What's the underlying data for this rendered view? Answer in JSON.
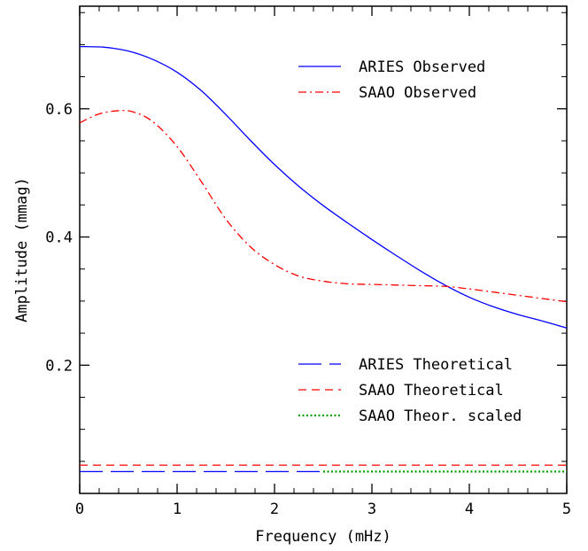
{
  "chart_data": {
    "type": "line",
    "title": "",
    "xlabel": "Frequency (mHz)",
    "ylabel": "Amplitude (mmag)",
    "xlim": [
      0,
      5
    ],
    "ylim": [
      0,
      0.76
    ],
    "x_ticks": [
      0,
      1,
      2,
      3,
      4,
      5
    ],
    "y_ticks": [
      0.2,
      0.4,
      0.6
    ],
    "x_tick_labels": [
      "0",
      "1",
      "2",
      "3",
      "4",
      "5"
    ],
    "y_tick_labels": [
      "0.2",
      "0.4",
      "0.6"
    ],
    "grid": false,
    "legend_placement": "top-right and lower-right",
    "series": [
      {
        "name": "ARIES Observed",
        "color": "#0000ff",
        "style": "solid",
        "x": [
          0,
          0.25,
          0.5,
          0.75,
          1.0,
          1.25,
          1.5,
          1.75,
          2.0,
          2.25,
          2.5,
          2.75,
          3.0,
          3.25,
          3.5,
          3.75,
          4.0,
          4.25,
          4.5,
          4.75,
          5.0
        ],
        "y": [
          0.697,
          0.696,
          0.69,
          0.677,
          0.657,
          0.628,
          0.591,
          0.551,
          0.513,
          0.479,
          0.449,
          0.422,
          0.396,
          0.371,
          0.347,
          0.325,
          0.306,
          0.291,
          0.279,
          0.269,
          0.258
        ]
      },
      {
        "name": "SAAO Observed",
        "color": "#ff0000",
        "style": "dash-dot",
        "x": [
          0,
          0.2,
          0.4,
          0.55,
          0.75,
          1.0,
          1.25,
          1.5,
          1.75,
          2.0,
          2.25,
          2.5,
          2.75,
          3.0,
          3.25,
          3.5,
          3.75,
          4.0,
          4.25,
          4.5,
          4.75,
          5.0
        ],
        "y": [
          0.578,
          0.592,
          0.597,
          0.595,
          0.58,
          0.541,
          0.486,
          0.428,
          0.385,
          0.357,
          0.339,
          0.331,
          0.327,
          0.326,
          0.325,
          0.324,
          0.323,
          0.319,
          0.314,
          0.309,
          0.304,
          0.299
        ]
      },
      {
        "name": "ARIES Theoretical",
        "color": "#0000ff",
        "style": "long-dash",
        "x": [
          0,
          2.5
        ],
        "y": [
          0.034,
          0.034
        ]
      },
      {
        "name": "SAAO Theoretical",
        "color": "#ff0000",
        "style": "short-dash",
        "x": [
          0,
          5
        ],
        "y": [
          0.044,
          0.044
        ]
      },
      {
        "name": "SAAO Theor. scaled",
        "color": "#00a000",
        "style": "dotted",
        "x": [
          2.5,
          5
        ],
        "y": [
          0.034,
          0.034
        ]
      }
    ],
    "legends": [
      {
        "entries": [
          "ARIES Observed",
          "SAAO Observed"
        ],
        "placement": "top-right"
      },
      {
        "entries": [
          "ARIES Theoretical",
          "SAAO Theoretical",
          "SAAO Theor. scaled"
        ],
        "placement": "lower-right"
      }
    ]
  }
}
